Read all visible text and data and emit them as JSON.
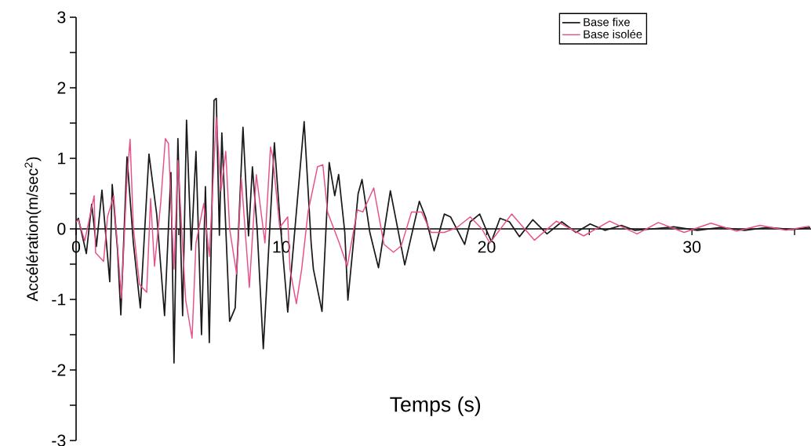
{
  "chart_data": {
    "type": "line",
    "xlabel": "Temps (s)",
    "ylabel": "Accélération(m/sec$^{2}$)",
    "xlim": [
      0,
      35.8
    ],
    "ylim": [
      -3,
      3
    ],
    "xticks": [
      0,
      {
        "value": 5,
        "label": null
      },
      10,
      {
        "value": 15,
        "label": null
      },
      20,
      {
        "value": 25,
        "label": null
      },
      30,
      {
        "value": 35,
        "label": null
      }
    ],
    "yticks": [
      -3,
      {
        "value": -2.5,
        "label": null
      },
      -2,
      {
        "value": -1.5,
        "label": null
      },
      -1,
      {
        "value": -0.5,
        "label": null
      },
      0,
      {
        "value": 0.5,
        "label": null
      },
      1,
      {
        "value": 1.5,
        "label": null
      },
      2,
      {
        "value": 2.5,
        "label": null
      },
      3
    ],
    "legend": "top right",
    "series": [
      {
        "name": "Base fixe",
        "color": "#1a1a1a",
        "x": [
          0.0,
          0.11,
          0.5,
          0.76,
          0.99,
          1.26,
          1.45,
          1.64,
          1.76,
          2.02,
          2.18,
          2.48,
          2.79,
          3.13,
          3.55,
          3.93,
          4.31,
          4.62,
          4.77,
          4.96,
          5.19,
          5.38,
          5.61,
          5.84,
          6.11,
          6.3,
          6.49,
          6.72,
          6.83,
          6.98,
          7.1,
          7.48,
          7.75,
          8.13,
          8.4,
          8.59,
          8.82,
          9.12,
          9.66,
          9.92,
          10.31,
          10.69,
          11.11,
          11.45,
          11.56,
          11.98,
          12.33,
          12.6,
          12.79,
          13.09,
          13.24,
          13.74,
          13.93,
          14.31,
          14.73,
          15.31,
          16.01,
          16.72,
          17.02,
          17.44,
          17.94,
          18.24,
          18.93,
          19.2,
          19.66,
          19.96,
          20.23,
          20.65,
          21.11,
          21.6,
          22.25,
          22.94,
          23.66,
          24.35,
          25.04,
          25.76,
          26.56,
          27.21,
          28.09,
          29.12,
          30.27,
          31.41,
          32.56,
          33.7,
          34.85,
          35.76
        ],
        "values": [
          0.1,
          0.15,
          -0.35,
          0.35,
          -0.25,
          0.55,
          -0.1,
          -0.75,
          0.63,
          -0.3,
          -1.22,
          1.02,
          -0.2,
          -1.12,
          1.06,
          0.2,
          -1.23,
          0.8,
          -1.9,
          1.28,
          -1.23,
          1.54,
          -0.3,
          1.1,
          -1.5,
          0.6,
          -1.61,
          1.82,
          1.85,
          -0.09,
          1.36,
          -1.31,
          -1.12,
          1.44,
          -0.1,
          0.88,
          0,
          -1.7,
          1.22,
          0.17,
          -1.18,
          0.1,
          1.52,
          -0.2,
          -0.57,
          -1.17,
          0.94,
          0.47,
          0.77,
          -0.05,
          -1.01,
          0.5,
          0.7,
          -0.05,
          -0.55,
          0.54,
          -0.51,
          0.39,
          0.17,
          -0.31,
          0.21,
          0.17,
          -0.22,
          0.1,
          0.21,
          0,
          -0.18,
          0.15,
          0.1,
          -0.11,
          0.13,
          -0.07,
          0.1,
          -0.05,
          0.07,
          -0.02,
          0.05,
          -0.02,
          0,
          0.03,
          -0.02,
          0.02,
          -0.02,
          0.02,
          -0.01,
          0.02
        ]
      },
      {
        "name": "Base isolée",
        "color": "#e8508a",
        "x": [
          0.0,
          0.11,
          0.42,
          0.88,
          0.95,
          1.34,
          1.53,
          1.83,
          2.21,
          2.48,
          2.63,
          2.79,
          3.09,
          3.44,
          3.63,
          3.82,
          4.12,
          4.35,
          4.5,
          4.77,
          4.96,
          5.34,
          5.65,
          5.84,
          6.22,
          6.49,
          6.83,
          7.06,
          7.29,
          7.48,
          7.82,
          8.05,
          8.44,
          8.78,
          9.2,
          9.47,
          9.58,
          9.92,
          10.31,
          10.42,
          10.73,
          10.99,
          11.3,
          11.76,
          12.02,
          12.25,
          12.82,
          13.21,
          13.7,
          13.97,
          14.5,
          15.0,
          15.46,
          15.84,
          16.34,
          16.83,
          17.29,
          17.94,
          18.55,
          19.2,
          19.77,
          20.15,
          21.22,
          22.33,
          23.4,
          24.73,
          25.99,
          27.33,
          28.36,
          29.62,
          30.92,
          32.18,
          33.32,
          34.58,
          35.73
        ],
        "values": [
          0.1,
          0.13,
          -0.17,
          0.47,
          -0.34,
          -0.46,
          0.17,
          0.47,
          -0.98,
          0.72,
          1.27,
          0.02,
          -0.79,
          -0.9,
          0.43,
          -0.53,
          0.36,
          1.28,
          1.21,
          -0.57,
          0.97,
          -1.01,
          -1.55,
          -0.2,
          0.36,
          -0.39,
          1.58,
          0.54,
          1.1,
          0,
          -0.64,
          0.72,
          -0.83,
          0.77,
          -0.2,
          1.16,
          1.02,
          0.02,
          0.17,
          -0.57,
          -1.06,
          -0.57,
          0.24,
          0.88,
          0.91,
          0.24,
          -0.2,
          -0.53,
          0.27,
          0.24,
          0.58,
          -0.22,
          -0.33,
          -0.24,
          0.24,
          0.24,
          -0.05,
          -0.05,
          0.02,
          0.17,
          0,
          -0.2,
          0.21,
          -0.16,
          0.11,
          -0.1,
          0.11,
          -0.07,
          0.09,
          -0.05,
          0.08,
          -0.03,
          0.05,
          -0.02,
          0.04
        ]
      }
    ]
  }
}
